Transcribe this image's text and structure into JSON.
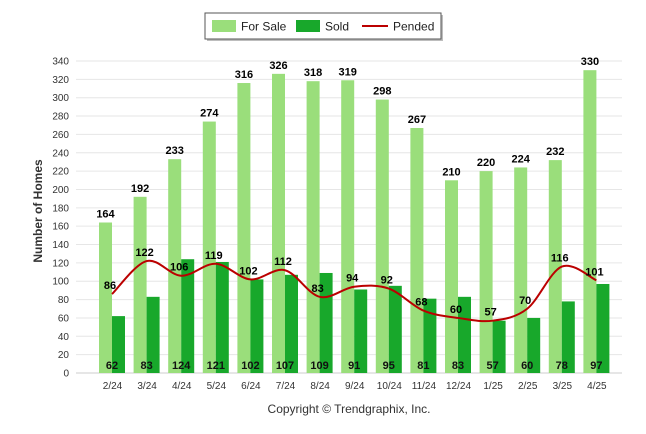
{
  "chart_data": {
    "type": "bar",
    "categories": [
      "2/24",
      "3/24",
      "4/24",
      "5/24",
      "6/24",
      "7/24",
      "8/24",
      "9/24",
      "10/24",
      "11/24",
      "12/24",
      "1/25",
      "2/25",
      "3/25",
      "4/25"
    ],
    "series": [
      {
        "name": "For Sale",
        "type": "bar",
        "color": "#9ADE7B",
        "values": [
          164,
          192,
          233,
          274,
          316,
          326,
          318,
          319,
          298,
          267,
          210,
          220,
          224,
          232,
          330
        ]
      },
      {
        "name": "Sold",
        "type": "bar",
        "color": "#18A82B",
        "values": [
          62,
          83,
          124,
          121,
          102,
          107,
          109,
          91,
          95,
          81,
          83,
          57,
          60,
          78,
          97
        ]
      },
      {
        "name": "Pended",
        "type": "line",
        "color": "#BB0000",
        "values": [
          86,
          122,
          106,
          119,
          102,
          112,
          83,
          94,
          92,
          68,
          60,
          57,
          70,
          116,
          101
        ]
      }
    ],
    "ylabel": "Number of Homes",
    "ylim": [
      0,
      340
    ],
    "yticks": [
      0,
      20,
      40,
      60,
      80,
      100,
      120,
      140,
      160,
      180,
      200,
      220,
      240,
      260,
      280,
      300,
      320,
      340
    ],
    "grid": true,
    "legend_position": "top-center"
  },
  "copyright": "Copyright © Trendgraphix, Inc."
}
